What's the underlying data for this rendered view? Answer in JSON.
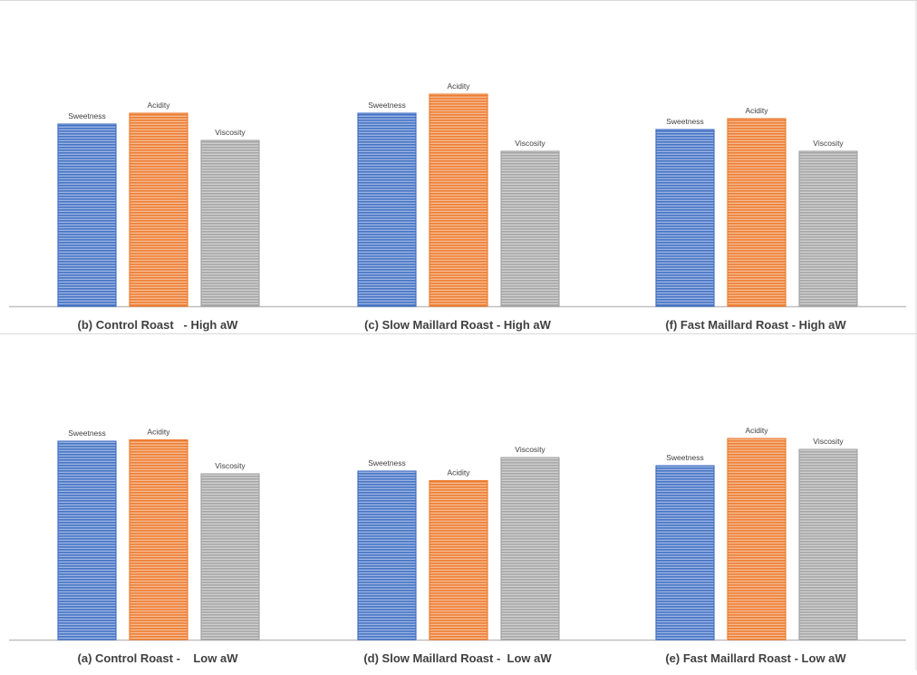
{
  "chart_data": {
    "type": "bar",
    "panels": [
      {
        "title": "",
        "groups": [
          {
            "label": "(b) Control Roast   - High aW",
            "values": [
              6.7,
              7.1,
              6.1
            ]
          },
          {
            "label": "(c) Slow Maillard Roast - High aW",
            "values": [
              7.1,
              7.8,
              5.7
            ]
          },
          {
            "label": "(f) Fast Maillard Roast - High aW",
            "values": [
              6.5,
              6.9,
              5.7
            ]
          }
        ]
      },
      {
        "title": "",
        "groups": [
          {
            "label": "(a) Control Roast -    Low aW",
            "values": [
              7.3,
              7.35,
              6.1
            ]
          },
          {
            "label": "(d) Slow Maillard Roast -  Low aW",
            "values": [
              6.2,
              5.85,
              6.7
            ]
          },
          {
            "label": "(e) Fast Maillard Roast - Low aW",
            "values": [
              6.4,
              7.4,
              7.0
            ]
          }
        ]
      }
    ],
    "series": [
      {
        "name": "Sweetness",
        "color": "#4472c4"
      },
      {
        "name": "Acidity",
        "color": "#ed7d31"
      },
      {
        "name": "Viscosity",
        "color": "#a5a5a5"
      }
    ],
    "ylim": [
      0,
      10
    ],
    "grid": false,
    "legend": "none",
    "bar_pattern": "horizontal-stripes",
    "axis_color": "#bfbfbf"
  }
}
